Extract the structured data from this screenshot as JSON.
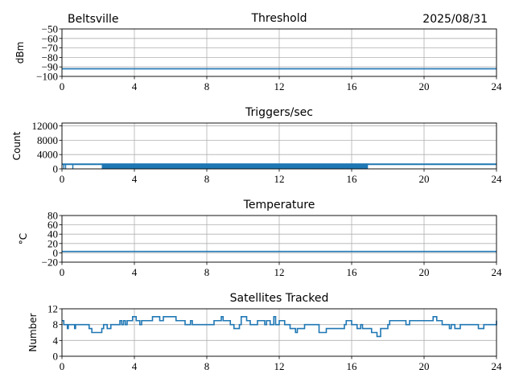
{
  "header": {
    "station": "Beltsville",
    "date": "2025/08/31"
  },
  "colors": {
    "series": "#1f77b4",
    "grid": "#b0b0b0"
  },
  "chart_data": [
    {
      "type": "line",
      "title": "Threshold",
      "ylabel": "dBm",
      "xlim": [
        0,
        24
      ],
      "ylim": [
        -100,
        -50
      ],
      "xticks": [
        "0",
        "4",
        "8",
        "12",
        "16",
        "20",
        "24"
      ],
      "yticks": [
        "−50",
        "−60",
        "−70",
        "−80",
        "−90",
        "−100"
      ],
      "ytick_values": [
        -50,
        -60,
        -70,
        -80,
        -90,
        -100
      ],
      "grid": true,
      "x": [
        0,
        24
      ],
      "y": [
        -92,
        -92
      ]
    },
    {
      "type": "line",
      "title": "Triggers/sec",
      "ylabel": "Count",
      "xlim": [
        0,
        24
      ],
      "ylim": [
        0,
        12800
      ],
      "xticks": [
        "0",
        "4",
        "8",
        "12",
        "16",
        "20",
        "24"
      ],
      "yticks": [
        "12000",
        "8000",
        "4000",
        "0"
      ],
      "ytick_values": [
        12000,
        8000,
        4000,
        0
      ],
      "grid": true,
      "typical": 1300,
      "dense_band": {
        "from": 2.2,
        "to": 16.9,
        "low": 0,
        "high": 1500
      },
      "drops_to_zero_at": [
        0.1,
        0.2,
        0.6,
        14.2,
        14.5,
        14.8,
        15.5,
        15.8,
        16.0,
        16.8
      ]
    },
    {
      "type": "line",
      "title": "Temperature",
      "ylabel": "°C",
      "xlim": [
        0,
        24
      ],
      "ylim": [
        -20,
        80
      ],
      "xticks": [
        "0",
        "4",
        "8",
        "12",
        "16",
        "20",
        "24"
      ],
      "yticks": [
        "80",
        "60",
        "40",
        "20",
        "0",
        "−20"
      ],
      "ytick_values": [
        80,
        60,
        40,
        20,
        0,
        -20
      ],
      "grid": true,
      "x": [
        0,
        24
      ],
      "y": [
        3,
        3
      ]
    },
    {
      "type": "line",
      "title": "Satellites Tracked",
      "ylabel": "Number",
      "xlim": [
        0,
        24
      ],
      "ylim": [
        0,
        12
      ],
      "xticks": [
        "0",
        "4",
        "8",
        "12",
        "16",
        "20",
        "24"
      ],
      "yticks": [
        "12",
        "8",
        "4",
        "0"
      ],
      "ytick_values": [
        12,
        8,
        4,
        0
      ],
      "grid": true,
      "step": true,
      "x": [
        0,
        0.1,
        0.3,
        0.35,
        0.7,
        0.75,
        1.5,
        1.65,
        2.2,
        2.3,
        2.5,
        2.7,
        3.2,
        3.3,
        3.4,
        3.5,
        3.6,
        3.8,
        3.9,
        4.1,
        4.3,
        4.4,
        4.6,
        5.0,
        5.4,
        5.6,
        6.3,
        6.8,
        7.1,
        7.2,
        7.3,
        8.4,
        8.8,
        8.9,
        9.3,
        9.5,
        9.8,
        9.9,
        10.2,
        10.4,
        10.8,
        11.2,
        11.3,
        11.5,
        11.7,
        11.8,
        12.0,
        12.3,
        12.6,
        12.9,
        13.0,
        13.4,
        14.2,
        14.6,
        15.6,
        15.7,
        16.0,
        16.3,
        16.5,
        16.6,
        17.1,
        17.4,
        17.6,
        18.0,
        18.1,
        19.0,
        19.2,
        20.5,
        20.7,
        21.0,
        21.4,
        21.5,
        21.7,
        22.0,
        23.0,
        23.3,
        23.4,
        24.0
      ],
      "y": [
        9,
        8,
        7,
        8,
        7,
        8,
        7,
        6,
        7,
        8,
        7,
        8,
        9,
        8,
        9,
        8,
        9,
        9,
        10,
        9,
        8,
        9,
        9,
        10,
        9,
        10,
        9,
        8,
        9,
        8,
        8,
        9,
        10,
        9,
        8,
        7,
        8,
        10,
        9,
        8,
        9,
        8,
        9,
        8,
        10,
        8,
        9,
        8,
        7,
        6,
        7,
        8,
        6,
        7,
        8,
        9,
        8,
        7,
        8,
        7,
        6,
        5,
        7,
        8,
        9,
        8,
        9,
        10,
        9,
        8,
        7,
        8,
        7,
        8,
        7,
        8,
        8,
        9
      ]
    }
  ]
}
